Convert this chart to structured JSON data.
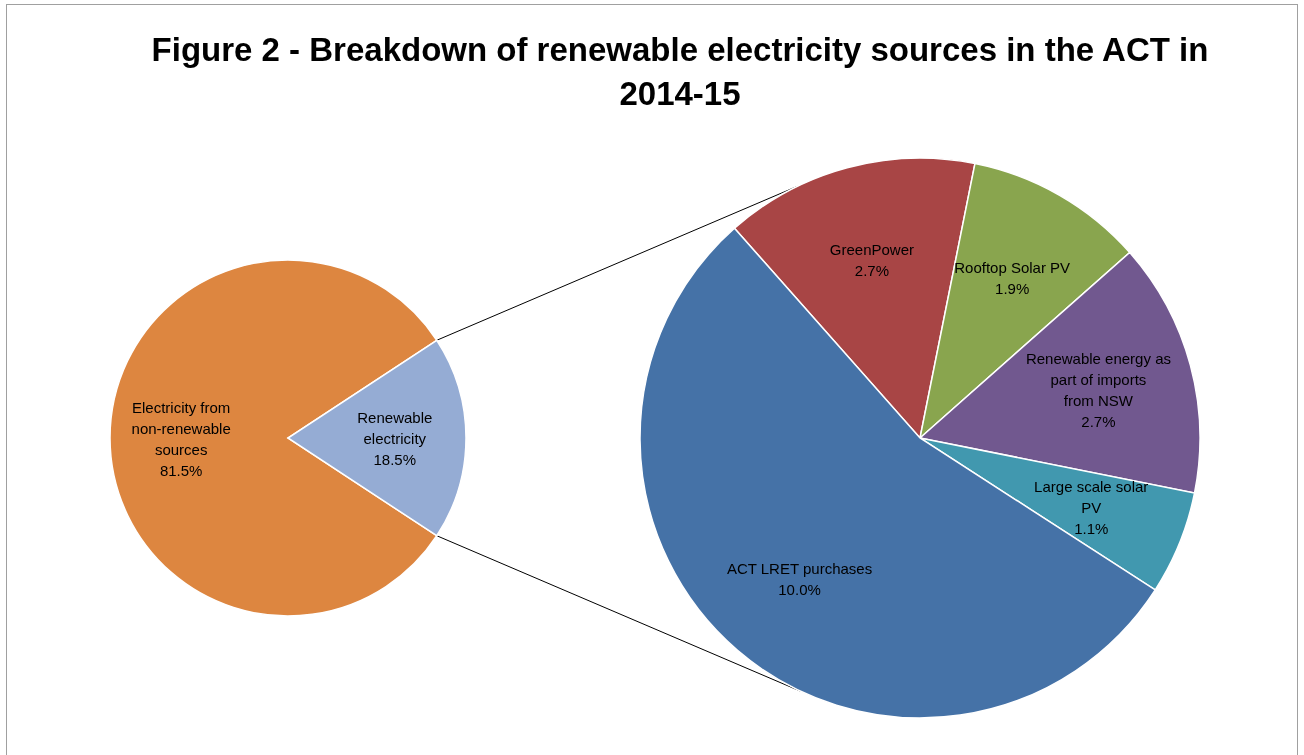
{
  "chart_data": [
    {
      "type": "pie",
      "title": "Figure 2 - Breakdown of renewable electricity sources in the ACT in 2014-15",
      "categories": [
        "Electricity from non-renewable sources",
        "Renewable electricity"
      ],
      "values": [
        81.5,
        18.5
      ],
      "colors": [
        "#dd8640",
        "#95acd4"
      ],
      "value_labels": [
        "81.5%",
        "18.5%"
      ]
    },
    {
      "type": "pie",
      "categories": [
        "GreenPower",
        "Rooftop Solar PV",
        "Renewable energy as part of imports from NSW",
        "Large scale solar PV",
        "ACT LRET purchases"
      ],
      "values": [
        2.7,
        1.9,
        2.7,
        1.1,
        10.0
      ],
      "colors": [
        "#a84545",
        "#89a54e",
        "#71588f",
        "#4198af",
        "#4572a7"
      ],
      "value_labels": [
        "2.7%",
        "1.9%",
        "2.7%",
        "1.1%",
        "10.0%"
      ]
    }
  ]
}
